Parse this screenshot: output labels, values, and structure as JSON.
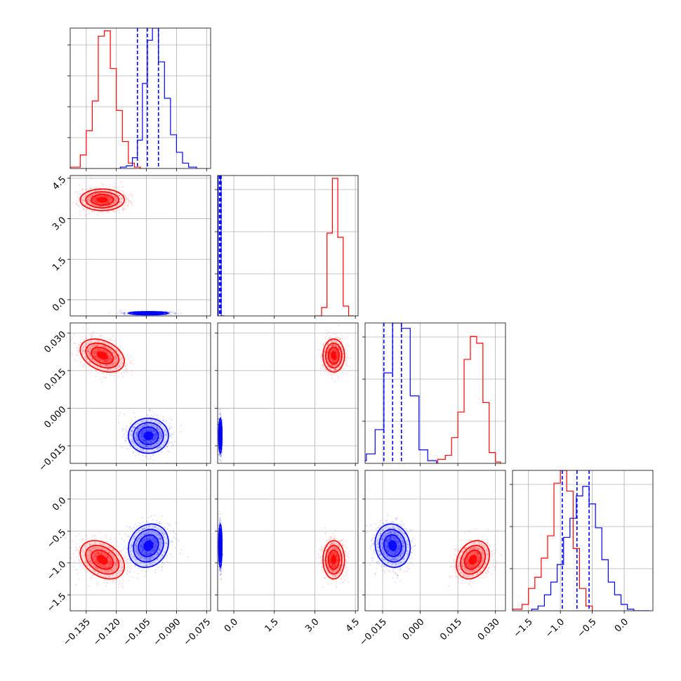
{
  "figure": {
    "colors": {
      "series_a": "#ff0000",
      "series_b": "#0000ff",
      "grid": "#b0b0b0"
    }
  },
  "chart_data": {
    "type": "corner",
    "grid": true,
    "parameters": [
      {
        "range": [
          -0.143,
          -0.073
        ],
        "ticks": [
          -0.135,
          -0.12,
          -0.105,
          -0.09,
          -0.075
        ],
        "tick_labels": [
          "−0.135",
          "−0.120",
          "−0.105",
          "−0.090",
          "−0.075"
        ]
      },
      {
        "range": [
          -0.6,
          4.6
        ],
        "ticks": [
          0.0,
          1.5,
          3.0,
          4.5
        ],
        "tick_labels": [
          "0.0",
          "1.5",
          "3.0",
          "4.5"
        ]
      },
      {
        "range": [
          -0.022,
          0.034
        ],
        "ticks": [
          -0.015,
          0.0,
          0.015,
          0.03
        ],
        "tick_labels": [
          "−0.015",
          "0.000",
          "0.015",
          "0.030"
        ]
      },
      {
        "range": [
          -1.75,
          0.45
        ],
        "ticks": [
          -1.5,
          -1.0,
          -0.5,
          0.0
        ],
        "tick_labels": [
          "−1.5",
          "−1.0",
          "−0.5",
          "0.0"
        ]
      }
    ],
    "series": [
      {
        "color": "#ff0000",
        "means": [
          -0.127,
          3.7,
          0.021,
          -0.95
        ],
        "stds": [
          0.0055,
          0.2,
          0.0033,
          0.15
        ],
        "correlations": {
          "0-1": 0.0,
          "0-2": -0.35,
          "0-3": -0.35,
          "1-2": 0.0,
          "1-3": 0.0,
          "2-3": 0.25
        },
        "hist": [
          {
            "edges": [
              -0.143,
              -0.138,
              -0.135,
              -0.132,
              -0.129,
              -0.126,
              -0.123,
              -0.12,
              -0.117,
              -0.114,
              -0.111,
              -0.108
            ],
            "counts": [
              1,
              10,
              28,
              50,
              98,
              102,
              74,
              43,
              20,
              4,
              1
            ]
          },
          {
            "edges": [
              3.0,
              3.25,
              3.45,
              3.65,
              3.85,
              4.05,
              4.25,
              4.45
            ],
            "counts": [
              0,
              6,
              59,
              98,
              56,
              7,
              0
            ]
          },
          {
            "edges": [
              0.007,
              0.01,
              0.0125,
              0.015,
              0.0175,
              0.02,
              0.0225,
              0.025,
              0.0275,
              0.03,
              0.032
            ],
            "counts": [
              3,
              6,
              19,
              38,
              77,
              94,
              89,
              45,
              8,
              1
            ]
          },
          {
            "edges": [
              -1.75,
              -1.6,
              -1.5,
              -1.4,
              -1.3,
              -1.2,
              -1.1,
              -1.0,
              -0.9,
              -0.8,
              -0.7,
              -0.6,
              -0.5
            ],
            "counts": [
              1,
              4,
              14,
              21,
              33,
              47,
              80,
              88,
              75,
              39,
              14,
              3
            ]
          }
        ]
      },
      {
        "color": "#0000ff",
        "means": [
          -0.104,
          -0.5,
          -0.011,
          -0.73
        ],
        "stds": [
          0.005,
          0.03,
          0.0035,
          0.17
        ],
        "correlations": {
          "0-1": 0.0,
          "0-2": 0.0,
          "0-3": 0.15,
          "1-2": 0.0,
          "1-3": 0.0,
          "2-3": -0.1
        },
        "quantiles": [
          [
            -0.1095,
            -0.1045,
            -0.099
          ],
          [
            -0.53,
            -0.5,
            -0.47
          ],
          [
            -0.0145,
            -0.011,
            -0.0075
          ],
          [
            -0.97,
            -0.74,
            -0.55
          ]
        ],
        "hist": [
          {
            "edges": [
              -0.118,
              -0.115,
              -0.112,
              -0.1095,
              -0.107,
              -0.1045,
              -0.102,
              -0.099,
              -0.096,
              -0.093,
              -0.09,
              -0.087,
              -0.084,
              -0.08
            ],
            "counts": [
              1,
              2,
              8,
              21,
              63,
              95,
              104,
              79,
              52,
              25,
              12,
              4,
              1
            ]
          },
          {
            "edges": [
              -0.58,
              -0.53,
              -0.51,
              -0.49,
              -0.47,
              -0.33
            ],
            "counts": [
              100,
              100,
              100,
              96,
              0
            ]
          },
          {
            "edges": [
              -0.0255,
              -0.0215,
              -0.018,
              -0.0145,
              -0.011,
              -0.0075,
              -0.004,
              -0.0005,
              0.003,
              0.0065
            ],
            "counts": [
              2,
              7,
              25,
              67,
              104,
              100,
              50,
              10,
              2
            ]
          },
          {
            "edges": [
              -1.45,
              -1.35,
              -1.25,
              -1.15,
              -1.05,
              -0.95,
              -0.85,
              -0.75,
              -0.65,
              -0.55,
              -0.45,
              -0.35,
              -0.25,
              -0.15,
              -0.05,
              0.05,
              0.15,
              0.25,
              0.4
            ],
            "counts": [
              1,
              3,
              10,
              18,
              29,
              46,
              58,
              72,
              78,
              67,
              52,
              32,
              18,
              10,
              4,
              1,
              0,
              0
            ]
          }
        ]
      }
    ]
  }
}
